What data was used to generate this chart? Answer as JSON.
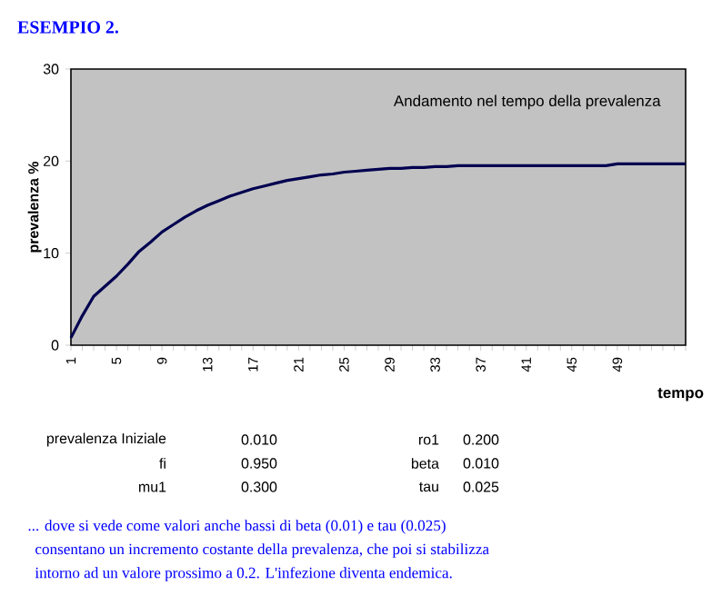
{
  "chart_data": {
    "type": "line",
    "title": "ESEMPIO 2.",
    "subtitle": "Andamento nel tempo della prevalenza",
    "xlabel": "tempo",
    "ylabel": "prevalenza %",
    "categories": [
      "1",
      null,
      null,
      null,
      "5",
      null,
      null,
      null,
      "9",
      null,
      null,
      null,
      "13",
      null,
      null,
      null,
      "17",
      null,
      null,
      null,
      "21",
      null,
      null,
      null,
      "25",
      null,
      null,
      null,
      "29",
      null,
      null,
      null,
      "33",
      null,
      null,
      null,
      "37",
      null,
      null,
      null,
      "41",
      null,
      null,
      null,
      "45",
      null,
      null,
      null,
      "49",
      null,
      null,
      null,
      null,
      null,
      null
    ],
    "values": [
      0.8,
      3.2,
      5.3,
      6.4,
      7.5,
      8.8,
      10.2,
      11.2,
      12.3,
      13.1,
      13.9,
      14.6,
      15.2,
      15.7,
      16.2,
      16.6,
      17.0,
      17.3,
      17.6,
      17.9,
      18.1,
      18.3,
      18.5,
      18.6,
      18.8,
      18.9,
      19.0,
      19.1,
      19.2,
      19.2,
      19.3,
      19.3,
      19.4,
      19.4,
      19.5,
      19.5,
      19.5,
      19.5,
      19.5,
      19.5,
      19.5,
      19.5,
      19.5,
      19.5,
      19.5,
      19.5,
      19.5,
      19.5,
      19.7,
      19.7,
      19.7,
      19.7,
      19.7,
      19.7,
      19.7
    ],
    "color": "#000050",
    "ylim": [
      0,
      30
    ],
    "yticks": [
      0,
      10,
      20,
      30
    ],
    "grid": false,
    "marker": "none",
    "line_style": "solid",
    "annotations": [
      "prevalenza Iniziale",
      "0.010",
      "ro1",
      "0.200",
      "fi",
      "0.950",
      "beta",
      "0.010",
      "mu1",
      "0.300",
      "tau",
      "0.025",
      "... dove si vede come valori anche bassi di beta (0.01) e tau (0.025)",
      "consentano un incremento costante della prevalenza, che poi si stabilizza",
      "intorno ad un valore  prossimo a 0.2. L'infezione diventa endemica."
    ]
  }
}
